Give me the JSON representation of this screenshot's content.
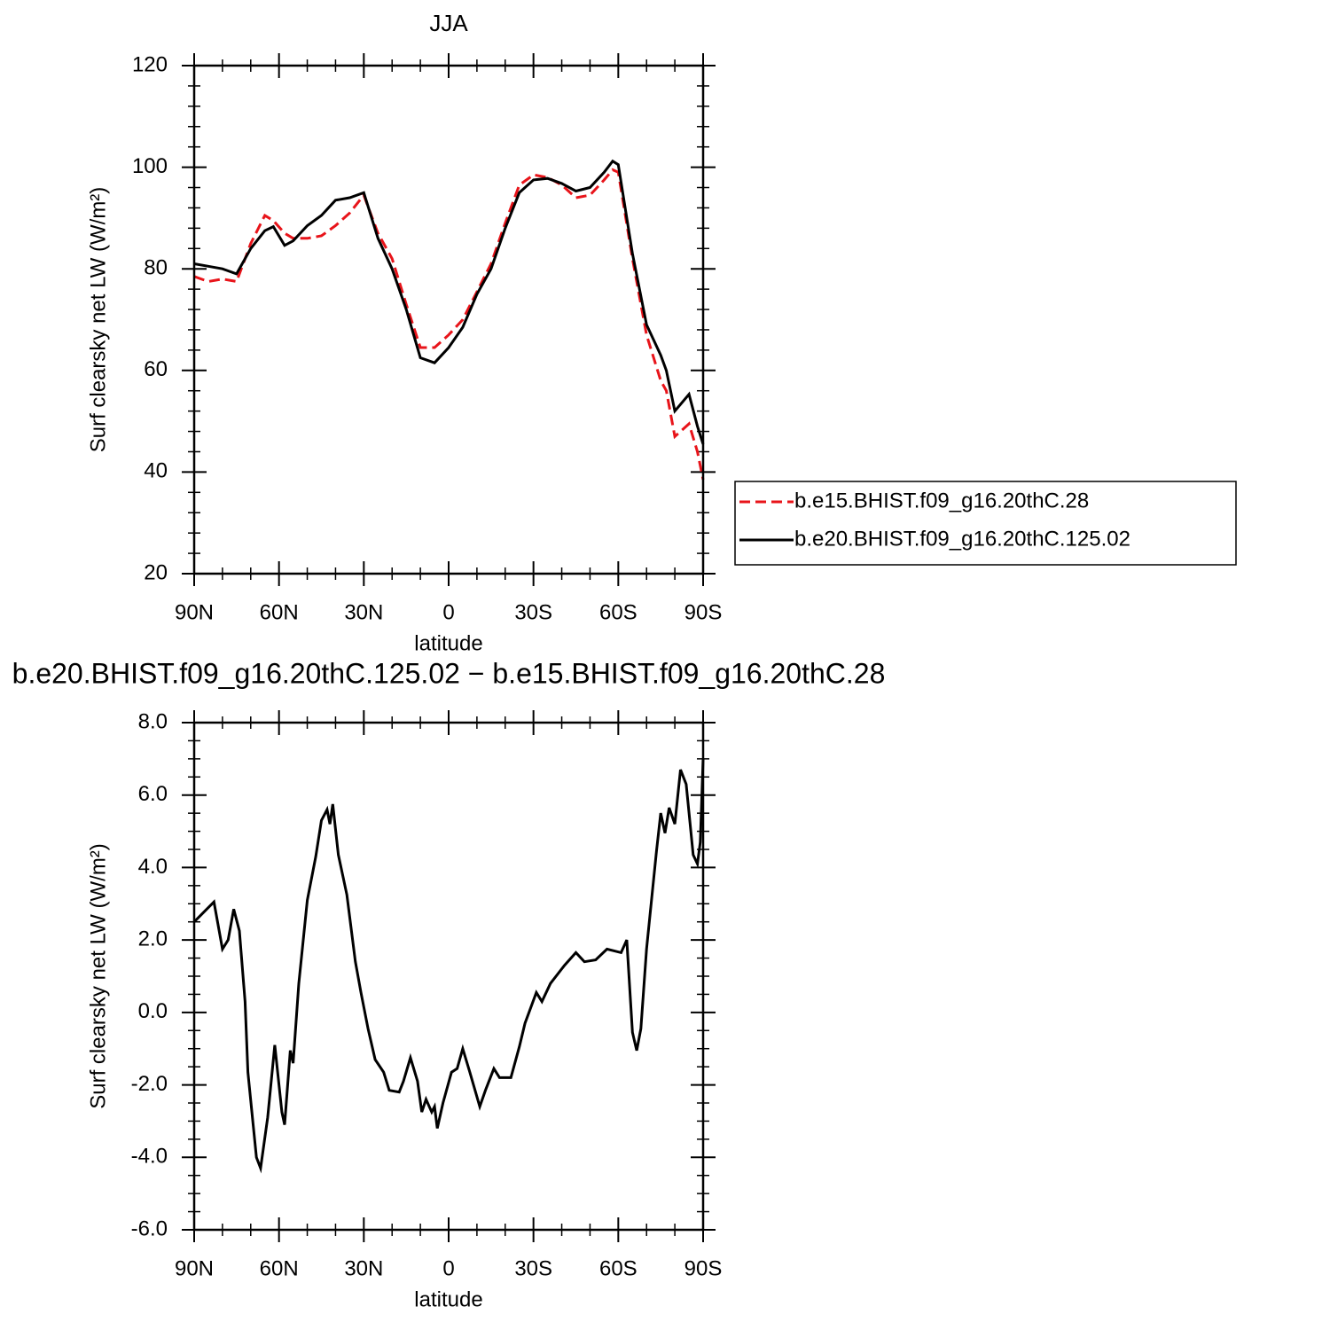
{
  "chart_data": [
    {
      "type": "line",
      "title": "JJA",
      "ylabel": "Surf clearsky net LW (W/m²)",
      "xlabel": "latitude",
      "x": [
        90,
        85,
        80,
        75,
        70,
        65,
        62,
        58,
        55,
        50,
        45,
        40,
        35,
        30,
        25,
        20,
        15,
        10,
        5,
        0,
        -5,
        -10,
        -15,
        -20,
        -25,
        -30,
        -35,
        -40,
        -45,
        -50,
        -55,
        -58,
        -60,
        -65,
        -70,
        -75,
        -77,
        -80,
        -85,
        -88,
        -90
      ],
      "series": [
        {
          "name": "b.e15.BHIST.f09_g16.20thC.28",
          "color": "#e8141a",
          "dashed": true,
          "values": [
            78.5,
            77.5,
            78,
            77.5,
            85,
            90.5,
            89.5,
            87,
            86,
            86,
            86.5,
            88.5,
            91,
            94.5,
            87,
            82,
            73,
            64.5,
            64.5,
            67,
            70,
            75.5,
            81,
            89,
            96.5,
            98.5,
            98,
            96.5,
            94,
            94.5,
            97.5,
            99.5,
            99,
            82,
            67,
            58,
            56,
            47,
            49.5,
            44,
            38.5
          ]
        },
        {
          "name": "b.e20.BHIST.f09_g16.20thC.125.02",
          "color": "#000000",
          "dashed": false,
          "values": [
            81,
            80.5,
            80,
            79,
            84,
            87.5,
            88.3,
            84.6,
            85.5,
            88.5,
            90.5,
            93.5,
            94,
            95,
            86,
            80,
            72,
            62.5,
            61.5,
            64.5,
            68.5,
            75,
            80,
            88,
            95,
            97.5,
            97.8,
            96.8,
            95.3,
            96,
            99,
            101.2,
            100.5,
            83,
            69,
            63,
            60,
            52,
            55.3,
            49,
            45.5
          ]
        }
      ],
      "xlim": [
        90,
        -90
      ],
      "xticks": [
        {
          "value": 90,
          "label": "90N"
        },
        {
          "value": 60,
          "label": "60N"
        },
        {
          "value": 30,
          "label": "30N"
        },
        0,
        {
          "value": -30,
          "label": "30S"
        },
        {
          "value": -60,
          "label": "60S"
        },
        {
          "value": -90,
          "label": "90S"
        }
      ],
      "ylim": [
        20,
        120
      ],
      "yticks": [
        20,
        40,
        60,
        80,
        100,
        120
      ],
      "legend": "right"
    },
    {
      "type": "line",
      "title": "b.e20.BHIST.f09_g16.20thC.125.02 − b.e15.BHIST.f09_g16.20thC.28",
      "ylabel": "Surf clearsky net LW (W/m²)",
      "xlabel": "latitude",
      "x": [
        90,
        83,
        80,
        78,
        76,
        74,
        72,
        71,
        68,
        66.5,
        64,
        61.5,
        59,
        58,
        56,
        55,
        53,
        50,
        47,
        45,
        43,
        42,
        41,
        39,
        36,
        33,
        31,
        28.5,
        26,
        23,
        21,
        17.5,
        16,
        13.5,
        11,
        9.5,
        8,
        6,
        5,
        4,
        2,
        -1,
        -3,
        -5,
        -7.5,
        -11,
        -13,
        -16,
        -18,
        -22,
        -25,
        -27,
        -31,
        -33,
        -36,
        -41,
        -45,
        -48,
        -52,
        -56,
        -61,
        -63,
        -65,
        -66.5,
        -68,
        -70,
        -73.5,
        -75,
        -76.5,
        -78,
        -80,
        -82,
        -84,
        -86.5,
        -88,
        -89,
        -90
      ],
      "color": "#000000",
      "values": [
        2.5,
        3.05,
        1.75,
        2.0,
        2.85,
        2.25,
        0.3,
        -1.65,
        -4.0,
        -4.3,
        -2.9,
        -0.9,
        -2.75,
        -3.1,
        -1.05,
        -1.4,
        0.8,
        3.1,
        4.3,
        5.3,
        5.6,
        5.2,
        5.75,
        4.35,
        3.25,
        1.4,
        0.55,
        -0.45,
        -1.3,
        -1.65,
        -2.15,
        -2.2,
        -1.9,
        -1.25,
        -1.9,
        -2.75,
        -2.4,
        -2.75,
        -2.6,
        -3.2,
        -2.5,
        -1.65,
        -1.55,
        -1.0,
        -1.65,
        -2.6,
        -2.15,
        -1.55,
        -1.8,
        -1.8,
        -0.95,
        -0.3,
        0.55,
        0.3,
        0.8,
        1.3,
        1.65,
        1.4,
        1.45,
        1.75,
        1.65,
        2.0,
        -0.55,
        -1.05,
        -0.45,
        1.75,
        4.45,
        5.5,
        4.95,
        5.65,
        5.2,
        6.7,
        6.3,
        4.35,
        4.1,
        4.7,
        7.0
      ],
      "xlim": [
        90,
        -90
      ],
      "xticks": [
        {
          "value": 90,
          "label": "90N"
        },
        {
          "value": 60,
          "label": "60N"
        },
        {
          "value": 30,
          "label": "30N"
        },
        0,
        {
          "value": -30,
          "label": "30S"
        },
        {
          "value": -60,
          "label": "60S"
        },
        {
          "value": -90,
          "label": "90S"
        }
      ],
      "ylim": [
        -6,
        8
      ],
      "yticks": [
        {
          "value": -6,
          "label": "-6.0"
        },
        {
          "value": -4,
          "label": "-4.0"
        },
        {
          "value": -2,
          "label": "-2.0"
        },
        {
          "value": 0,
          "label": "0.0"
        },
        {
          "value": 2,
          "label": "2.0"
        },
        {
          "value": 4,
          "label": "4.0"
        },
        {
          "value": 6,
          "label": "6.0"
        },
        {
          "value": 8,
          "label": "8.0"
        }
      ]
    }
  ]
}
